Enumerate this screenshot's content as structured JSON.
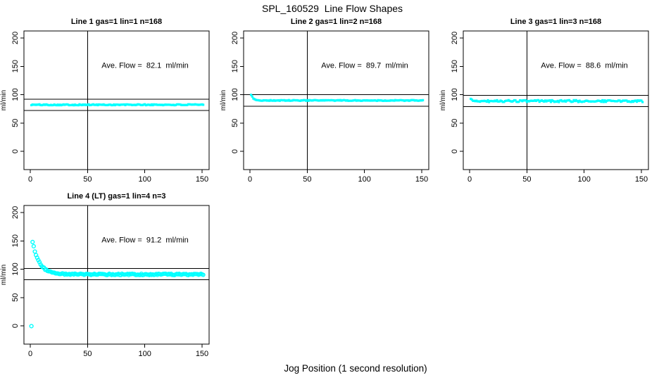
{
  "figure": {
    "title": "SPL_160529  Line Flow Shapes",
    "xlabel": "Jog Position (1 second resolution)"
  },
  "colors": {
    "points": "#00ffff",
    "axis": "#000000",
    "text": "#000000",
    "background": "#ffffff"
  },
  "chart_data": [
    {
      "id": "line1",
      "type": "scatter",
      "title": "Line 1 gas=1 lin=1 n=168",
      "annotation": "Ave. Flow =  82.1  ml/min",
      "ave_flow_ml_min": 82.1,
      "ylabel": "ml/min",
      "x_ticks": [
        0,
        50,
        100,
        150
      ],
      "y_ticks": [
        0,
        50,
        100,
        150,
        200
      ],
      "xlim": [
        -6,
        157
      ],
      "ylim": [
        -32,
        212
      ],
      "vline_x": 50,
      "hlines": [
        92.1,
        72.1
      ],
      "annotation_pos": [
        100,
        150
      ],
      "series": {
        "x_start": 1,
        "x_end": 151,
        "x_step": 1,
        "baseline": 82.1,
        "amplitude": 0,
        "tau": 1,
        "noise": 0.9,
        "seed": 101,
        "marker": "square",
        "extra_points": []
      }
    },
    {
      "id": "line2",
      "type": "scatter",
      "title": "Line 2 gas=1 lin=2 n=168",
      "annotation": "Ave. Flow =  89.7  ml/min",
      "ave_flow_ml_min": 89.7,
      "ylabel": "ml/min",
      "x_ticks": [
        0,
        50,
        100,
        150
      ],
      "y_ticks": [
        0,
        50,
        100,
        150,
        200
      ],
      "xlim": [
        -6,
        157
      ],
      "ylim": [
        -32,
        212
      ],
      "vline_x": 50,
      "hlines": [
        99.7,
        79.7
      ],
      "annotation_pos": [
        100,
        150
      ],
      "series": {
        "x_start": 1,
        "x_end": 151,
        "x_step": 1,
        "baseline": 89.7,
        "amplitude": 10.4,
        "tau": 2.0,
        "noise": 0.7,
        "seed": 202,
        "marker": "square",
        "extra_points": []
      }
    },
    {
      "id": "line3",
      "type": "scatter",
      "title": "Line 3 gas=1 lin=3 n=168",
      "annotation": "Ave. Flow =  88.6  ml/min",
      "ave_flow_ml_min": 88.6,
      "ylabel": "ml/min",
      "x_ticks": [
        0,
        50,
        100,
        150
      ],
      "y_ticks": [
        0,
        50,
        100,
        150,
        200
      ],
      "xlim": [
        -6,
        157
      ],
      "ylim": [
        -32,
        212
      ],
      "vline_x": 50,
      "hlines": [
        98.6,
        78.6
      ],
      "annotation_pos": [
        100,
        150
      ],
      "series": {
        "x_start": 1,
        "x_end": 151,
        "x_step": 1,
        "baseline": 88.6,
        "amplitude": 2.5,
        "tau": 2.0,
        "noise": 1.7,
        "seed": 303,
        "marker": "square",
        "extra_points": []
      }
    },
    {
      "id": "line4",
      "type": "scatter",
      "title": "Line 4 (LT) gas=1 lin=4 n=3",
      "annotation": "Ave. Flow =  91.2  ml/min",
      "ave_flow_ml_min": 91.2,
      "ylabel": "ml/min",
      "x_ticks": [
        0,
        50,
        100,
        150
      ],
      "y_ticks": [
        0,
        50,
        100,
        150,
        200
      ],
      "xlim": [
        -6,
        157
      ],
      "ylim": [
        -32,
        212
      ],
      "vline_x": 50,
      "hlines": [
        101.2,
        81.2
      ],
      "annotation_pos": [
        100,
        150
      ],
      "series": {
        "x_start": 2,
        "x_end": 151,
        "x_step": 1,
        "baseline": 90.8,
        "amplitude": 57.5,
        "tau": 6.0,
        "noise": 1.2,
        "seed": 404,
        "marker": "circle",
        "extra_points": [
          [
            1,
            -0.6
          ]
        ]
      }
    }
  ]
}
